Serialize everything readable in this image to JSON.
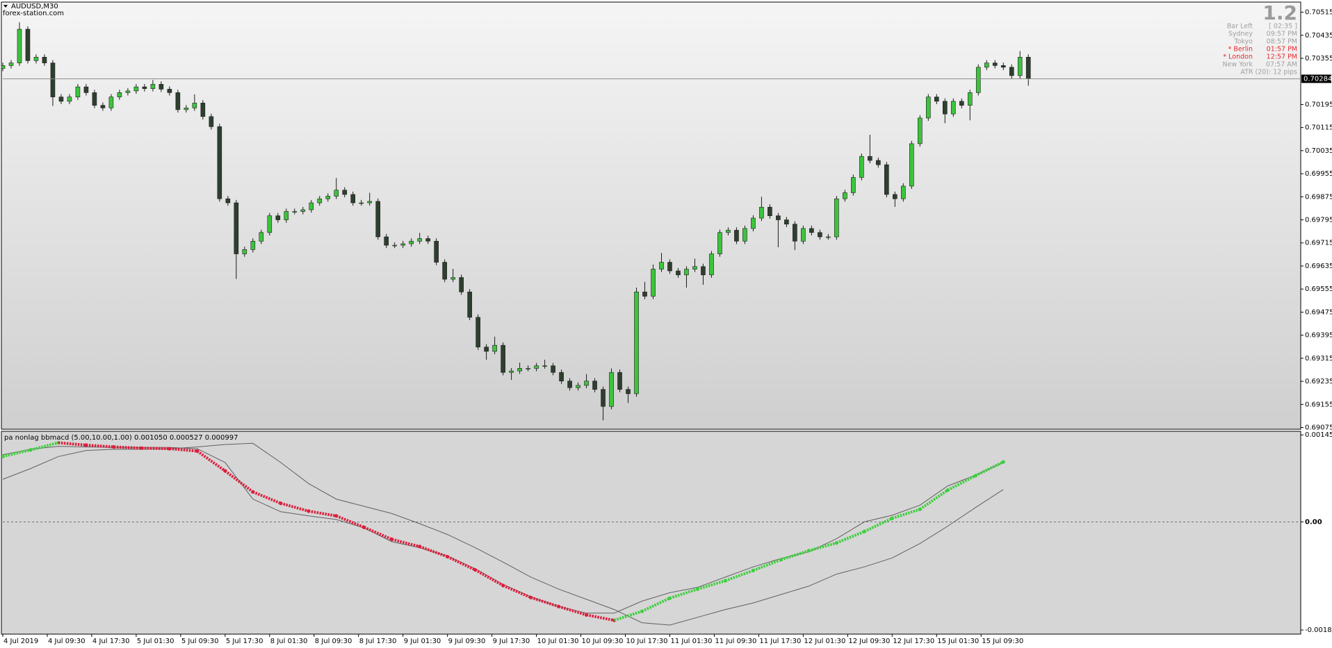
{
  "header": {
    "symbol": "AUDUSD,M30",
    "site": "forex-station.com"
  },
  "info_panel": {
    "big": "1.2",
    "rows": [
      {
        "label": "Bar Left",
        "value": "[ 02:35 ]",
        "color": "#a0a0a0"
      },
      {
        "label": "Sydney",
        "value": "09:57 PM",
        "color": "#a0a0a0"
      },
      {
        "label": "Tokyo",
        "value": "08:57 PM",
        "color": "#a0a0a0"
      },
      {
        "label": "* Berlin",
        "value": "01:57 PM",
        "color": "#e8262a"
      },
      {
        "label": "* London",
        "value": "12:57 PM",
        "color": "#e8262a"
      },
      {
        "label": "New York",
        "value": "07:57 AM",
        "color": "#a0a0a0"
      },
      {
        "label": "ATR (20): 12 pips",
        "color": "#a0a0a0"
      }
    ]
  },
  "chart_data": [
    {
      "type": "candlestick",
      "up_color": "#3cc43c",
      "down_color": "#2f3f2f",
      "wick_color": "#1a1a1a",
      "xlim": [
        0,
        467
      ],
      "ylim": [
        0.69069,
        0.7055
      ],
      "yticks": [
        0.70515,
        0.70435,
        0.70355,
        0.70195,
        0.70115,
        0.70035,
        0.69955,
        0.69875,
        0.69795,
        0.69715,
        0.69635,
        0.69555,
        0.69475,
        0.69395,
        0.69315,
        0.69235,
        0.69155,
        0.69075
      ],
      "last_price": 0.70284,
      "x": [
        0,
        3,
        6,
        9,
        12,
        15,
        18,
        21,
        24,
        27,
        30,
        33,
        36,
        39,
        42,
        45,
        48,
        51,
        54,
        57,
        60,
        63,
        66,
        69,
        72,
        75,
        78,
        81,
        84,
        87,
        90,
        93,
        96,
        99,
        102,
        105,
        108,
        111,
        114,
        117,
        120,
        123,
        126,
        129,
        132,
        135,
        138,
        141,
        144,
        147,
        150,
        153,
        156,
        159,
        162,
        165,
        168,
        171,
        174,
        177,
        180,
        183,
        186,
        189,
        192,
        195,
        198,
        201,
        204,
        207,
        210,
        213,
        216,
        219,
        222,
        225,
        228,
        231,
        234,
        237,
        240,
        243,
        246,
        249,
        252,
        255,
        258,
        261,
        264,
        267,
        270,
        273,
        276,
        279,
        282,
        285,
        288,
        291,
        294,
        297,
        300,
        303,
        306,
        309,
        312,
        315,
        318,
        321,
        324,
        327,
        330,
        333,
        336,
        339,
        342,
        345,
        348,
        351,
        354,
        357,
        360,
        363,
        366,
        369
      ],
      "open": [
        0.7032,
        0.7033,
        0.70339,
        0.70456,
        0.70347,
        0.70359,
        0.70339,
        0.70221,
        0.70206,
        0.70221,
        0.70256,
        0.70236,
        0.70192,
        0.70183,
        0.70221,
        0.70236,
        0.70242,
        0.70256,
        0.7025,
        0.70265,
        0.70248,
        0.70236,
        0.70177,
        0.70183,
        0.702,
        0.70153,
        0.70118,
        0.69868,
        0.69854,
        0.69677,
        0.69692,
        0.69721,
        0.69751,
        0.69809,
        0.69795,
        0.69824,
        0.69824,
        0.6983,
        0.69854,
        0.69868,
        0.69877,
        0.69898,
        0.69883,
        0.69854,
        0.69854,
        0.69859,
        0.69736,
        0.69707,
        0.69707,
        0.69712,
        0.69721,
        0.6973,
        0.69721,
        0.69648,
        0.69589,
        0.69595,
        0.69545,
        0.69457,
        0.69354,
        0.69339,
        0.6936,
        0.69266,
        0.69271,
        0.6928,
        0.6928,
        0.69289,
        0.69289,
        0.69266,
        0.69236,
        0.69213,
        0.69221,
        0.69236,
        0.69207,
        0.69148,
        0.69266,
        0.69207,
        0.69192,
        0.69545,
        0.6953,
        0.69624,
        0.69648,
        0.69618,
        0.69604,
        0.69624,
        0.69633,
        0.69604,
        0.69677,
        0.69751,
        0.69759,
        0.69721,
        0.69765,
        0.69801,
        0.69839,
        0.69809,
        0.69795,
        0.6978,
        0.69721,
        0.69765,
        0.69751,
        0.69736,
        0.69736,
        0.69868,
        0.69889,
        0.69942,
        0.70015,
        0.70001,
        0.69986,
        0.69883,
        0.69868,
        0.69912,
        0.70059,
        0.70148,
        0.70221,
        0.70206,
        0.70162,
        0.70206,
        0.70192,
        0.70236,
        0.70324,
        0.70339,
        0.7033,
        0.70324,
        0.70295,
        0.70359
      ],
      "high": [
        0.7034,
        0.70349,
        0.7048,
        0.70466,
        0.70369,
        0.70369,
        0.70349,
        0.70231,
        0.70231,
        0.70266,
        0.70266,
        0.70246,
        0.70202,
        0.70231,
        0.70246,
        0.70252,
        0.70266,
        0.70266,
        0.7028,
        0.70275,
        0.70258,
        0.70246,
        0.70193,
        0.7023,
        0.7021,
        0.70163,
        0.70128,
        0.69878,
        0.69864,
        0.69702,
        0.69731,
        0.69761,
        0.69819,
        0.69819,
        0.69834,
        0.69834,
        0.6984,
        0.69864,
        0.69878,
        0.69887,
        0.6994,
        0.69908,
        0.69893,
        0.69864,
        0.69889,
        0.69869,
        0.69746,
        0.69717,
        0.69722,
        0.69731,
        0.6975,
        0.6974,
        0.69731,
        0.69658,
        0.69625,
        0.69605,
        0.69555,
        0.69467,
        0.69364,
        0.6939,
        0.6937,
        0.69281,
        0.693,
        0.6929,
        0.69299,
        0.6931,
        0.69299,
        0.69276,
        0.69246,
        0.69231,
        0.6926,
        0.69246,
        0.69217,
        0.6928,
        0.69276,
        0.69217,
        0.6956,
        0.6958,
        0.6964,
        0.6968,
        0.69658,
        0.69628,
        0.69634,
        0.6966,
        0.69643,
        0.69687,
        0.69761,
        0.69769,
        0.69769,
        0.69775,
        0.69811,
        0.69875,
        0.69849,
        0.69819,
        0.69805,
        0.6979,
        0.69775,
        0.69775,
        0.69761,
        0.69746,
        0.69878,
        0.69899,
        0.69952,
        0.70025,
        0.7009,
        0.70011,
        0.69996,
        0.69893,
        0.69922,
        0.70069,
        0.70158,
        0.70231,
        0.70231,
        0.70216,
        0.70216,
        0.70216,
        0.70246,
        0.70334,
        0.70349,
        0.70349,
        0.7034,
        0.70334,
        0.7038,
        0.70369
      ],
      "low": [
        0.7031,
        0.7032,
        0.70329,
        0.70337,
        0.70337,
        0.70329,
        0.7019,
        0.70196,
        0.70196,
        0.70211,
        0.70226,
        0.70182,
        0.70173,
        0.70173,
        0.70211,
        0.70226,
        0.70232,
        0.7024,
        0.7024,
        0.70238,
        0.70226,
        0.70167,
        0.70167,
        0.70173,
        0.70143,
        0.70108,
        0.69858,
        0.69844,
        0.6959,
        0.69667,
        0.69682,
        0.69711,
        0.69741,
        0.69785,
        0.69785,
        0.69814,
        0.69814,
        0.6982,
        0.69844,
        0.69858,
        0.69867,
        0.69873,
        0.69844,
        0.69844,
        0.69844,
        0.69726,
        0.69697,
        0.69697,
        0.69697,
        0.69702,
        0.69711,
        0.69711,
        0.69638,
        0.69579,
        0.69579,
        0.69535,
        0.69447,
        0.69344,
        0.6931,
        0.69329,
        0.69256,
        0.6924,
        0.69261,
        0.6927,
        0.6927,
        0.69279,
        0.69256,
        0.69226,
        0.69203,
        0.69203,
        0.69211,
        0.69197,
        0.691,
        0.69138,
        0.69197,
        0.6916,
        0.69182,
        0.6952,
        0.6952,
        0.69614,
        0.69608,
        0.69594,
        0.6956,
        0.69614,
        0.6957,
        0.69594,
        0.69667,
        0.69741,
        0.69711,
        0.69711,
        0.69755,
        0.69791,
        0.69799,
        0.697,
        0.6977,
        0.6969,
        0.69711,
        0.69741,
        0.69726,
        0.69726,
        0.69726,
        0.69858,
        0.69879,
        0.69932,
        0.69991,
        0.69976,
        0.69873,
        0.6984,
        0.69858,
        0.69902,
        0.70049,
        0.70138,
        0.70196,
        0.7013,
        0.70152,
        0.70182,
        0.7014,
        0.70226,
        0.70314,
        0.7032,
        0.70314,
        0.70285,
        0.70285,
        0.7026
      ],
      "close": [
        0.7033,
        0.70339,
        0.70456,
        0.70347,
        0.70359,
        0.70339,
        0.70221,
        0.70206,
        0.70221,
        0.70256,
        0.70236,
        0.70192,
        0.70183,
        0.70221,
        0.70236,
        0.70242,
        0.70256,
        0.7025,
        0.70265,
        0.70248,
        0.70236,
        0.70177,
        0.70183,
        0.702,
        0.70153,
        0.70118,
        0.69868,
        0.69854,
        0.69677,
        0.69692,
        0.69721,
        0.69751,
        0.69809,
        0.69795,
        0.69824,
        0.69824,
        0.6983,
        0.69854,
        0.69868,
        0.69877,
        0.69898,
        0.69883,
        0.69854,
        0.69854,
        0.69859,
        0.69736,
        0.69707,
        0.69707,
        0.69712,
        0.69721,
        0.6973,
        0.69721,
        0.69648,
        0.69589,
        0.69595,
        0.69545,
        0.69457,
        0.69354,
        0.69339,
        0.6936,
        0.69266,
        0.69271,
        0.6928,
        0.6928,
        0.69289,
        0.69289,
        0.69266,
        0.69236,
        0.69213,
        0.69221,
        0.69236,
        0.69207,
        0.69148,
        0.69266,
        0.69207,
        0.69192,
        0.69545,
        0.6953,
        0.69624,
        0.69648,
        0.69618,
        0.69604,
        0.69624,
        0.69633,
        0.69604,
        0.69677,
        0.69751,
        0.69759,
        0.69721,
        0.69765,
        0.69801,
        0.69839,
        0.69809,
        0.69795,
        0.6978,
        0.69721,
        0.69765,
        0.69751,
        0.69736,
        0.69736,
        0.69868,
        0.69889,
        0.69942,
        0.70015,
        0.70001,
        0.69986,
        0.69883,
        0.69868,
        0.69912,
        0.70059,
        0.70148,
        0.70221,
        0.70206,
        0.70162,
        0.70206,
        0.70192,
        0.70236,
        0.70324,
        0.70339,
        0.7033,
        0.70324,
        0.70295,
        0.70359,
        0.70284
      ]
    },
    {
      "type": "line",
      "title": "pa nonlag bbmacd (5.00,10.00,1.00) 0.001050 0.000527 0.000997",
      "xlim": [
        0,
        467
      ],
      "ylim": [
        -0.00187,
        0.00151
      ],
      "yticks": [
        0.00145,
        {
          "value": 0,
          "label": "0.00"
        },
        -0.001802
      ],
      "levels": [
        0
      ],
      "xticks": [
        {
          "value": 0,
          "label": "4 Jul 2019"
        },
        {
          "value": 16,
          "label": "4 Jul 09:30"
        },
        {
          "value": 32,
          "label": "4 Jul 17:30"
        },
        {
          "value": 48,
          "label": "5 Jul 01:30"
        },
        {
          "value": 64,
          "label": "5 Jul 09:30"
        },
        {
          "value": 80,
          "label": "5 Jul 17:30"
        },
        {
          "value": 96,
          "label": "8 Jul 01:30"
        },
        {
          "value": 112,
          "label": "8 Jul 09:30"
        },
        {
          "value": 128,
          "label": "8 Jul 17:30"
        },
        {
          "value": 144,
          "label": "9 Jul 01:30"
        },
        {
          "value": 160,
          "label": "9 Jul 09:30"
        },
        {
          "value": 176,
          "label": "9 Jul 17:30"
        },
        {
          "value": 192,
          "label": "10 Jul 01:30"
        },
        {
          "value": 208,
          "label": "10 Jul 09:30"
        },
        {
          "value": 224,
          "label": "10 Jul 17:30"
        },
        {
          "value": 240,
          "label": "11 Jul 01:30"
        },
        {
          "value": 256,
          "label": "11 Jul 09:30"
        },
        {
          "value": 272,
          "label": "11 Jul 17:30"
        },
        {
          "value": 288,
          "label": "12 Jul 01:30"
        },
        {
          "value": 304,
          "label": "12 Jul 09:30"
        },
        {
          "value": 320,
          "label": "12 Jul 17:30"
        },
        {
          "value": 336,
          "label": "15 Jul 01:30"
        },
        {
          "value": 352,
          "label": "15 Jul 09:30"
        }
      ],
      "x": [
        0,
        10,
        20,
        30,
        40,
        50,
        60,
        70,
        80,
        90,
        100,
        110,
        120,
        130,
        140,
        150,
        160,
        170,
        180,
        190,
        200,
        210,
        220,
        230,
        240,
        250,
        260,
        270,
        280,
        290,
        300,
        310,
        320,
        330,
        340,
        350,
        360
      ],
      "series": [
        {
          "style": "line",
          "color": "#606060",
          "values": [
            0.00071,
            0.00089,
            0.00109,
            0.00119,
            0.00121,
            0.00121,
            0.00122,
            0.00125,
            0.00129,
            0.00131,
            0.00099,
            0.00064,
            0.00038,
            0.00026,
            0.00014,
            -3e-05,
            -0.00021,
            -0.00043,
            -0.00067,
            -0.00092,
            -0.00112,
            -0.00129,
            -0.00146,
            -0.00168,
            -0.00172,
            -0.00159,
            -0.00146,
            -0.00135,
            -0.00121,
            -0.00107,
            -0.00087,
            -0.00075,
            -0.0006,
            -0.00036,
            -7e-05,
            0.00024,
            0.00054
          ]
        },
        {
          "style": "line",
          "color": "#606060",
          "values": [
            0.00112,
            0.00121,
            0.00126,
            0.00125,
            0.00124,
            0.00124,
            0.00124,
            0.00122,
            0.00099,
            0.00038,
            0.00017,
            0.0001,
            4e-05,
            -0.0001,
            -0.00033,
            -0.00043,
            -0.00057,
            -0.00078,
            -0.00104,
            -0.00125,
            -0.00141,
            -0.00152,
            -0.00152,
            -0.00132,
            -0.00118,
            -0.00109,
            -0.00092,
            -0.00075,
            -0.00061,
            -0.0005,
            -0.00028,
            0,
            0.00011,
            0.00028,
            0.0006,
            0.00078,
            0.00099
          ]
        },
        {
          "style": "dots",
          "color_up": "#3ccf3c",
          "color_down": "#dc1e3c",
          "values": [
            0.00109,
            0.0012,
            0.00132,
            0.00128,
            0.00125,
            0.00123,
            0.00122,
            0.00118,
            0.00085,
            0.0005,
            0.00031,
            0.00018,
            0.0001,
            -9e-05,
            -0.00029,
            -0.00041,
            -0.00058,
            -0.0008,
            -0.00106,
            -0.00126,
            -0.00141,
            -0.00155,
            -0.00164,
            -0.00149,
            -0.00127,
            -0.00112,
            -0.00098,
            -0.00081,
            -0.00063,
            -0.00048,
            -0.00035,
            -0.00016,
            6e-05,
            0.00021,
            0.00053,
            0.00077,
            0.001
          ]
        }
      ]
    }
  ]
}
